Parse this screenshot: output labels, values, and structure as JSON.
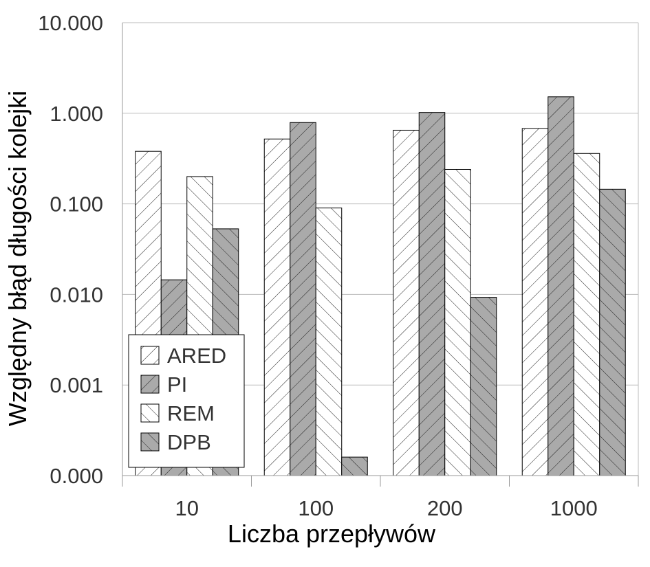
{
  "chart_data": {
    "type": "bar",
    "scale": "log",
    "ylabel": "Względny błąd długości kolejki",
    "xlabel": "Liczba przepływów",
    "categories": [
      "10",
      "100",
      "200",
      "1000"
    ],
    "yticks": [
      {
        "value": 0.0001,
        "label": "0.000"
      },
      {
        "value": 0.001,
        "label": "0.001"
      },
      {
        "value": 0.01,
        "label": "0.010"
      },
      {
        "value": 0.1,
        "label": "0.100"
      },
      {
        "value": 1,
        "label": "1.000"
      },
      {
        "value": 10,
        "label": "10.000"
      }
    ],
    "ylim": [
      0.0001,
      10
    ],
    "grid": true,
    "legend_position": "bottom-left",
    "series": [
      {
        "name": "ARED",
        "values": [
          0.38,
          0.52,
          0.65,
          0.68
        ],
        "fill": "#ffffff",
        "hatch": "forward"
      },
      {
        "name": "PI",
        "values": [
          0.0145,
          0.79,
          1.02,
          1.52
        ],
        "fill": "#aaaaaa",
        "hatch": "forward"
      },
      {
        "name": "REM",
        "values": [
          0.2,
          0.09,
          0.24,
          0.36
        ],
        "fill": "#ffffff",
        "hatch": "backward"
      },
      {
        "name": "DPB",
        "values": [
          0.053,
          0.00016,
          0.0093,
          0.145
        ],
        "fill": "#aaaaaa",
        "hatch": "backward"
      }
    ]
  }
}
